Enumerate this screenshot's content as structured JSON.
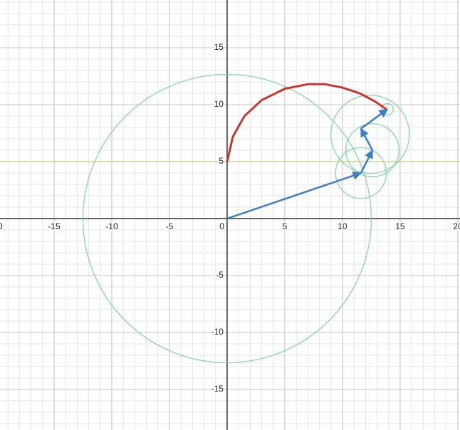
{
  "chart_data": {
    "type": "epicycles",
    "xlim": [
      -19.69,
      20.19
    ],
    "ylim": [
      -18.56,
      19.19
    ],
    "xticks": [
      -20,
      -15,
      -10,
      -5,
      0,
      5,
      10,
      15,
      20
    ],
    "yticks": [
      -15,
      -10,
      -5,
      5,
      10,
      15
    ],
    "minor_step": 1,
    "grid": true,
    "hline": {
      "y": 5,
      "color": "#c9d68f"
    },
    "circles": {
      "color": "#7dcf9f",
      "cx": [
        0,
        11.6,
        12.6,
        12.4,
        13.9
      ],
      "cy": [
        0,
        4,
        6,
        7.4,
        9.6
      ],
      "r": [
        12.5,
        2.2,
        2.3,
        3.4,
        0.5
      ]
    },
    "vectors": {
      "color": "#3c7ec8",
      "x": [
        0,
        11.6,
        12.6,
        11.6,
        13.9
      ],
      "y": [
        0,
        4,
        6,
        7.9,
        9.6
      ]
    },
    "trace": {
      "color": "#c7372f",
      "x": [
        0,
        0.5,
        1.5,
        3,
        5,
        7,
        8.5,
        10,
        11.5,
        12.8,
        13.8
      ],
      "y": [
        5,
        7.2,
        9,
        10.4,
        11.4,
        11.8,
        11.8,
        11.5,
        11,
        10.3,
        9.6
      ]
    }
  }
}
